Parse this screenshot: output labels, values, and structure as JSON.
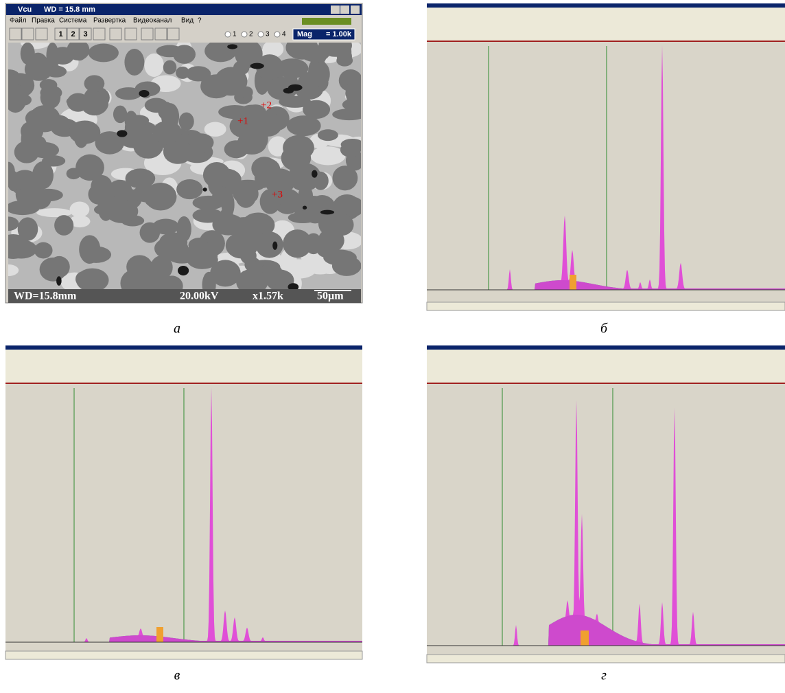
{
  "panel_a": {
    "window_title": "Vcu",
    "wd_header": "WD = 15.8 mm",
    "menu": [
      "Файл",
      "Правка",
      "Система",
      "Развертка",
      "Видеоканал",
      "Вид",
      "?"
    ],
    "toolbar_buttons": [
      "1",
      "2",
      "3"
    ],
    "radio_options": [
      "1",
      "2",
      "3",
      "4"
    ],
    "mag_label": "Mag",
    "mag_value": "= 1.00k",
    "points": [
      "+1",
      "+2",
      "+3"
    ],
    "footer": {
      "wd": "WD=15.8mm",
      "voltage": "20.00kV",
      "magnification": "x1.57k",
      "scale": "50µm"
    }
  },
  "captions": [
    "а",
    "б",
    "в",
    "г"
  ]
}
